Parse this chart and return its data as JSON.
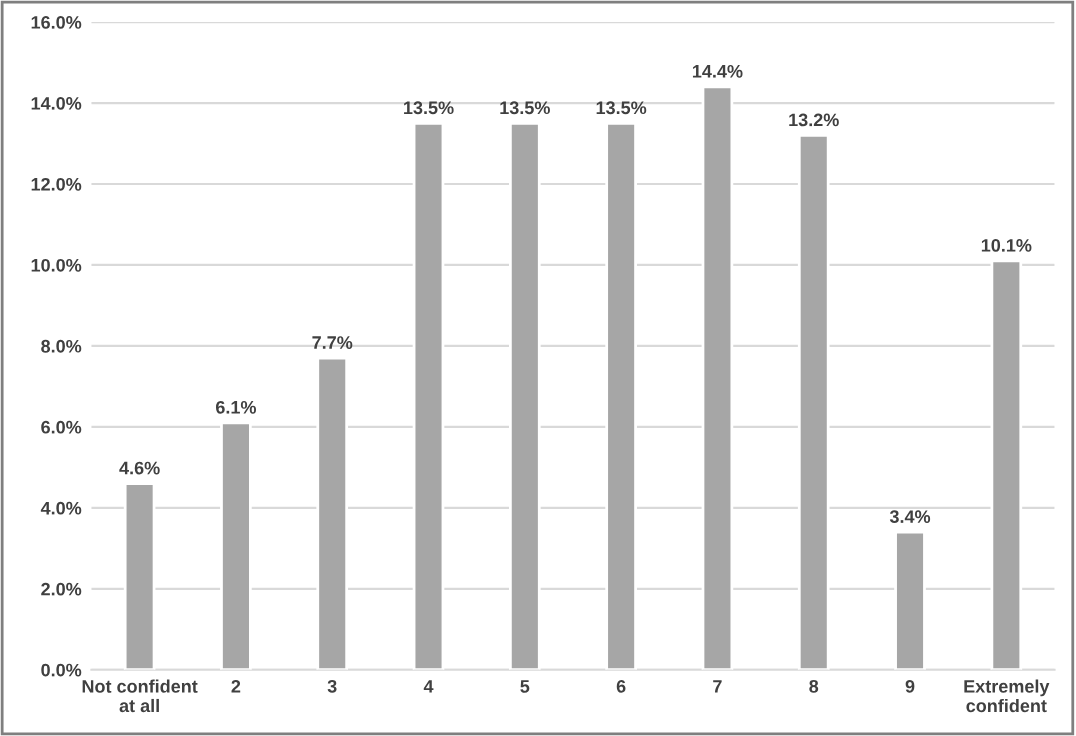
{
  "chart_data": {
    "type": "bar",
    "categories": [
      "Not confident\nat all",
      "2",
      "3",
      "4",
      "5",
      "6",
      "7",
      "8",
      "9",
      "Extremely\nconfident"
    ],
    "values": [
      4.6,
      6.1,
      7.7,
      13.5,
      13.5,
      13.5,
      14.4,
      13.2,
      3.4,
      10.1
    ],
    "value_labels": [
      "4.6%",
      "6.1%",
      "7.7%",
      "13.5%",
      "13.5%",
      "13.5%",
      "14.4%",
      "13.2%",
      "3.4%",
      "10.1%"
    ],
    "color": "#a6a6a6",
    "ylim": [
      0,
      16
    ],
    "yticks": [
      {
        "value": 0,
        "label": "0.0%"
      },
      {
        "value": 2,
        "label": "2.0%"
      },
      {
        "value": 4,
        "label": "4.0%"
      },
      {
        "value": 6,
        "label": "6.0%"
      },
      {
        "value": 8,
        "label": "8.0%"
      },
      {
        "value": 10,
        "label": "10.0%"
      },
      {
        "value": 12,
        "label": "12.0%"
      },
      {
        "value": 14,
        "label": "14.0%"
      },
      {
        "value": 16,
        "label": "16.0%"
      }
    ],
    "grid": "y"
  }
}
